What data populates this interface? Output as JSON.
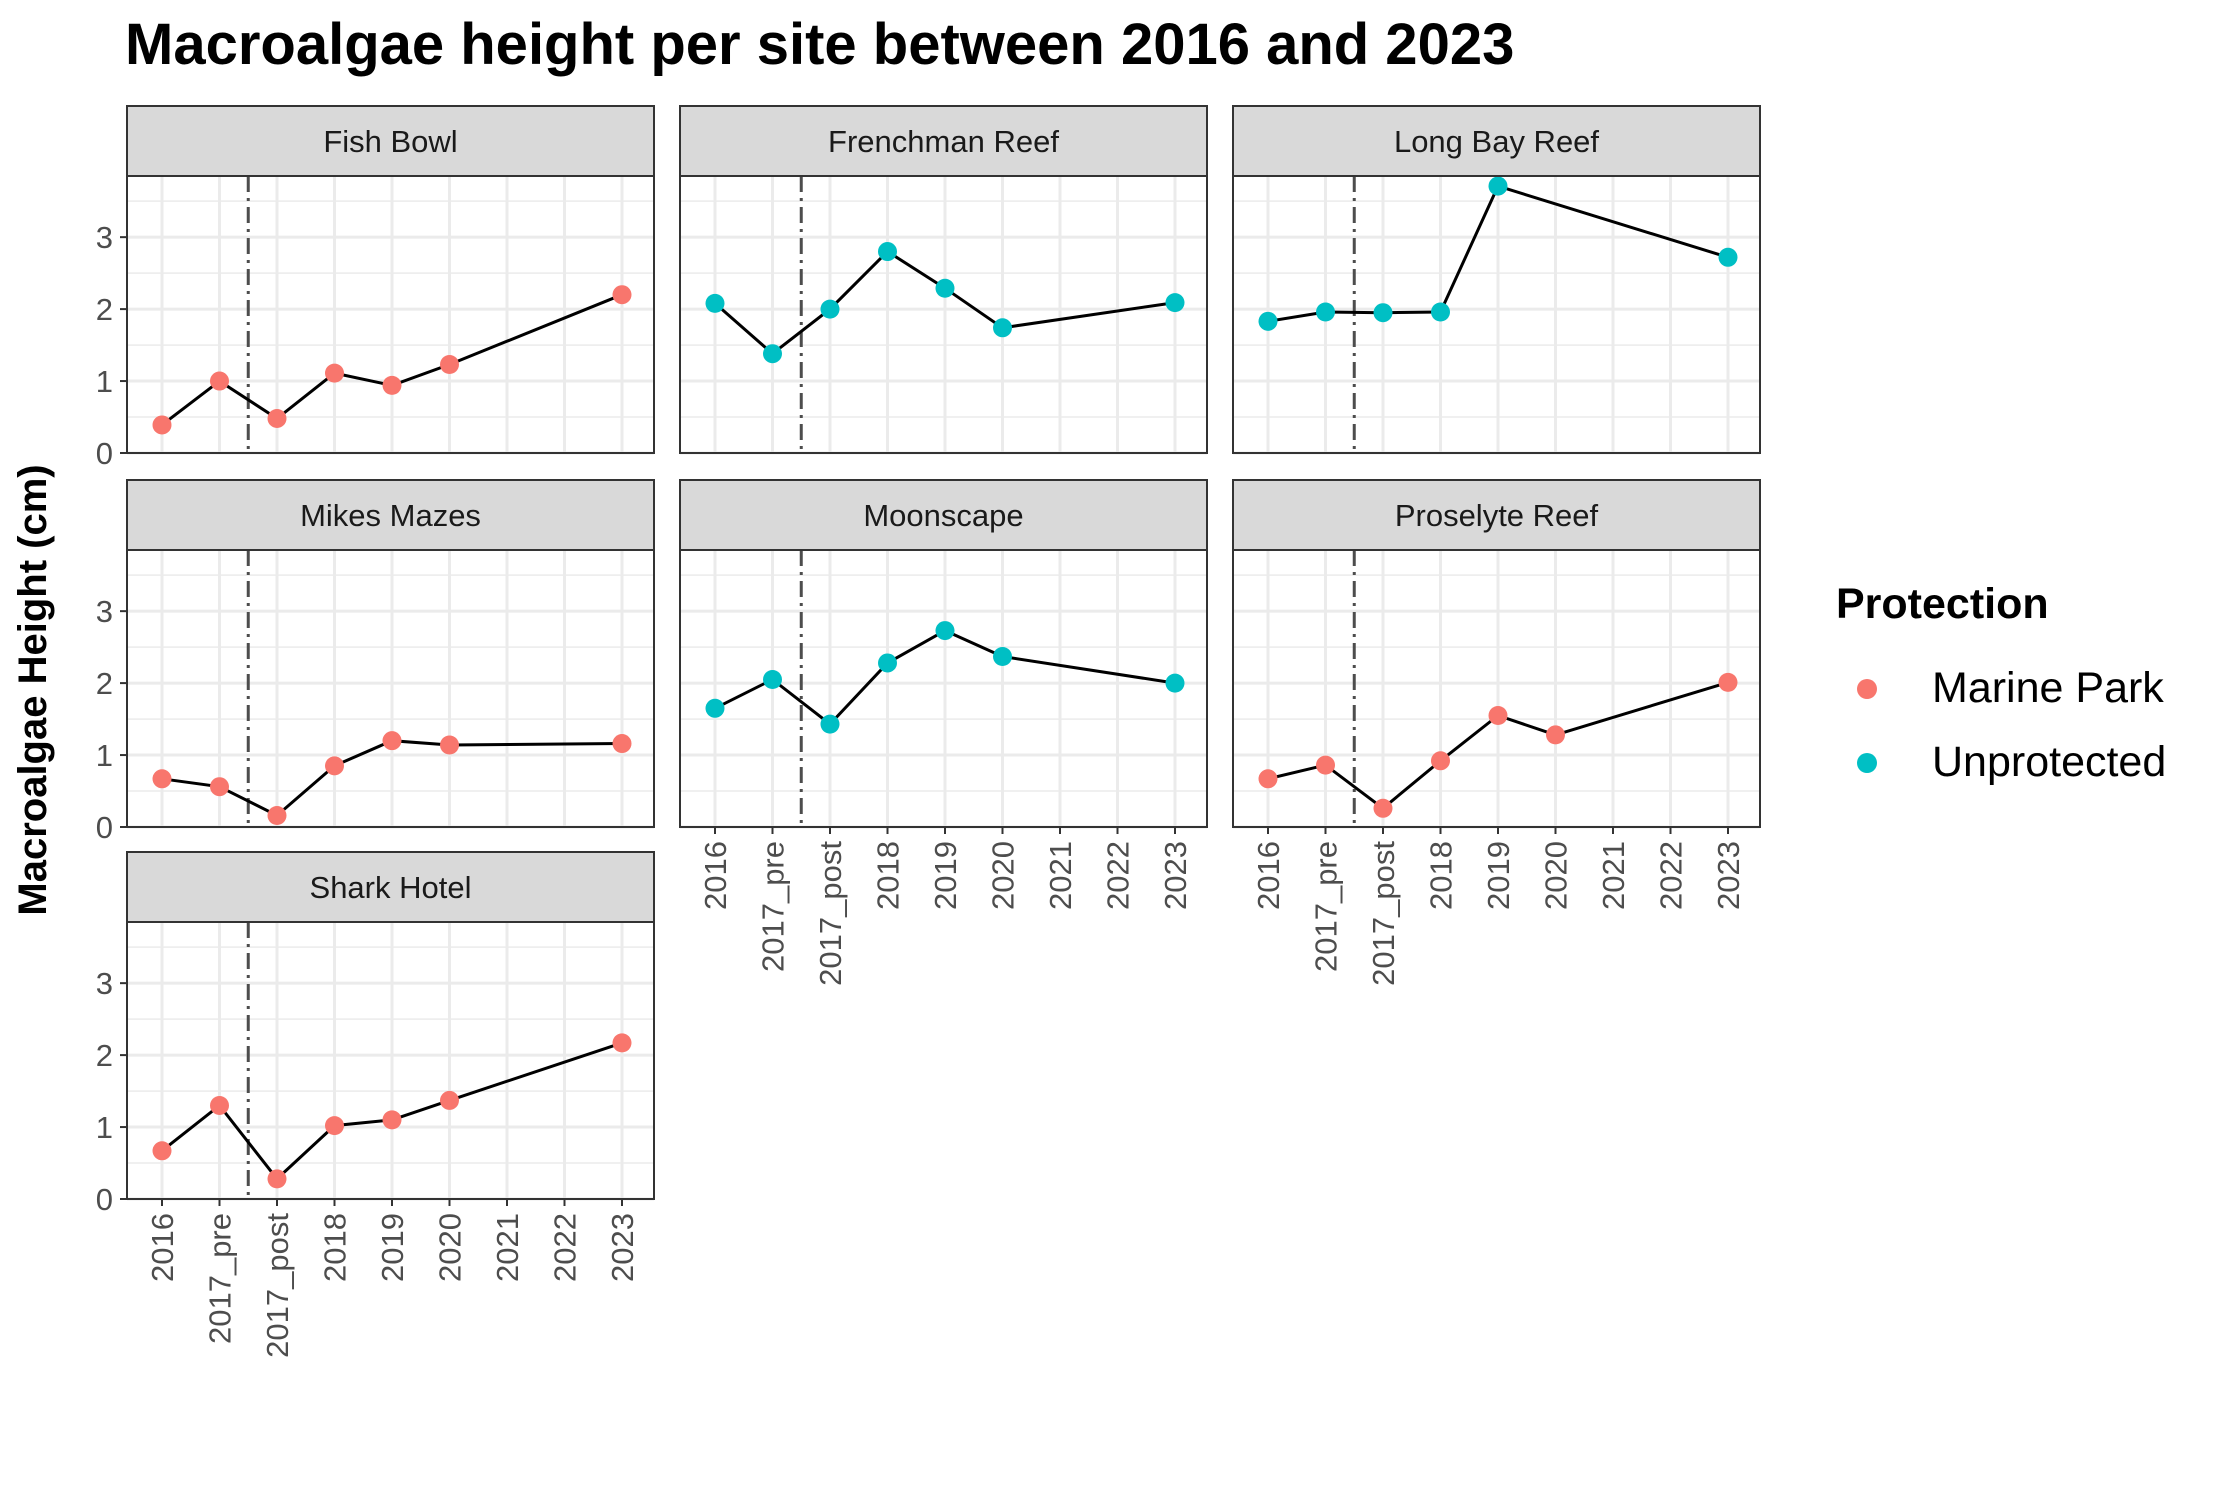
{
  "chart_data": {
    "type": "line",
    "title": "Macroalgae height per site between 2016 and 2023",
    "xlabel": "",
    "ylabel": "Macroalgae Height (cm)",
    "categories": [
      "2016",
      "2017_pre",
      "2017_post",
      "2018",
      "2019",
      "2020",
      "2021",
      "2022",
      "2023"
    ],
    "ylim": [
      0,
      3.85
    ],
    "y_ticks": [
      0,
      1,
      2,
      3
    ],
    "grid": true,
    "reference_line": {
      "between": [
        "2017_pre",
        "2017_post"
      ],
      "style": "dashdot"
    },
    "legend": {
      "title": "Protection",
      "placement": "right",
      "entries": [
        {
          "name": "Marine Park",
          "color": "#F8766D"
        },
        {
          "name": "Unprotected",
          "color": "#00BFC4"
        }
      ]
    },
    "colors": {
      "line": "#000000",
      "strip_bg": "#d9d9d9",
      "grid": "#ebebeb",
      "panel_border": "#333333",
      "vline": "#4d4d4d"
    },
    "panels": [
      {
        "site": "Fish Bowl",
        "protection": "Marine Park",
        "points": [
          [
            "2016",
            0.39
          ],
          [
            "2017_pre",
            1.0
          ],
          [
            "2017_post",
            0.48
          ],
          [
            "2018",
            1.11
          ],
          [
            "2019",
            0.94
          ],
          [
            "2020",
            1.23
          ],
          [
            "2023",
            2.2
          ]
        ]
      },
      {
        "site": "Frenchman Reef",
        "protection": "Unprotected",
        "points": [
          [
            "2016",
            2.08
          ],
          [
            "2017_pre",
            1.38
          ],
          [
            "2017_post",
            2.0
          ],
          [
            "2018",
            2.8
          ],
          [
            "2019",
            2.29
          ],
          [
            "2020",
            1.74
          ],
          [
            "2023",
            2.09
          ]
        ]
      },
      {
        "site": "Long Bay Reef",
        "protection": "Unprotected",
        "points": [
          [
            "2016",
            1.83
          ],
          [
            "2017_pre",
            1.96
          ],
          [
            "2017_post",
            1.95
          ],
          [
            "2018",
            1.96
          ],
          [
            "2019",
            3.71
          ],
          [
            "2023",
            2.72
          ]
        ]
      },
      {
        "site": "Mikes Mazes",
        "protection": "Marine Park",
        "points": [
          [
            "2016",
            0.67
          ],
          [
            "2017_pre",
            0.56
          ],
          [
            "2017_post",
            0.16
          ],
          [
            "2018",
            0.85
          ],
          [
            "2019",
            1.2
          ],
          [
            "2020",
            1.14
          ],
          [
            "2023",
            1.16
          ]
        ]
      },
      {
        "site": "Moonscape",
        "protection": "Unprotected",
        "points": [
          [
            "2016",
            1.65
          ],
          [
            "2017_pre",
            2.05
          ],
          [
            "2017_post",
            1.43
          ],
          [
            "2018",
            2.28
          ],
          [
            "2019",
            2.73
          ],
          [
            "2020",
            2.37
          ],
          [
            "2023",
            2.0
          ]
        ]
      },
      {
        "site": "Proselyte Reef",
        "protection": "Marine Park",
        "points": [
          [
            "2016",
            0.67
          ],
          [
            "2017_pre",
            0.86
          ],
          [
            "2017_post",
            0.26
          ],
          [
            "2018",
            0.92
          ],
          [
            "2019",
            1.55
          ],
          [
            "2020",
            1.28
          ],
          [
            "2023",
            2.01
          ]
        ]
      },
      {
        "site": "Shark Hotel",
        "protection": "Marine Park",
        "points": [
          [
            "2016",
            0.67
          ],
          [
            "2017_pre",
            1.3
          ],
          [
            "2017_post",
            0.28
          ],
          [
            "2018",
            1.02
          ],
          [
            "2019",
            1.1
          ],
          [
            "2020",
            1.37
          ],
          [
            "2023",
            2.17
          ]
        ]
      }
    ]
  }
}
